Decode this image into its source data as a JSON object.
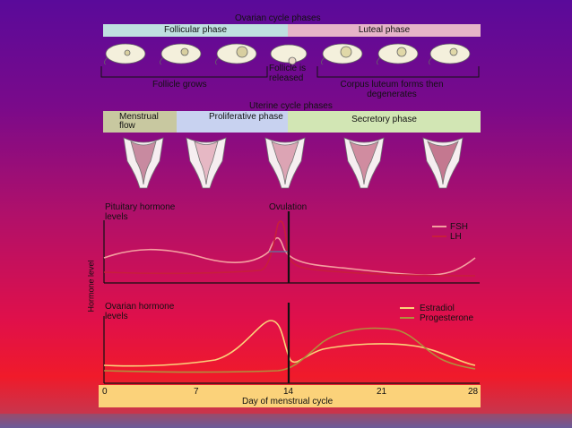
{
  "ovarian": {
    "title": "Ovarian cycle phases",
    "follicular": "Follicular phase",
    "luteal": "Luteal phase",
    "follicle_grows": "Follicle grows",
    "follicle_released": "Follicle is released",
    "corpus_luteum": "Corpus luteum forms then degenerates"
  },
  "uterine": {
    "title": "Uterine cycle phases",
    "menstrual": "Menstrual flow",
    "proliferative": "Proliferative phase",
    "secretory": "Secretory phase"
  },
  "pituitary": {
    "label": "Pituitary hormone levels",
    "ovulation": "Ovulation",
    "legend_fsh": "FSH",
    "legend_lh": "LH"
  },
  "ovarian_hormones": {
    "label": "Ovarian hormone levels",
    "legend_estradiol": "Estradiol",
    "legend_progesterone": "Progesterone"
  },
  "y_axis_label": "Hormone level",
  "x_axis": {
    "label": "Day of menstrual cycle",
    "ticks": [
      "0",
      "7",
      "14",
      "21",
      "28"
    ]
  },
  "colors": {
    "fsh": "#f4a0a0",
    "lh": "#c81e3c",
    "estradiol": "#fbd27a",
    "progesterone": "#b0903c",
    "follicular_bar": "#bfe0e0",
    "luteal_bar": "#e6b4c8",
    "menstrual_bar": "#c8c8a0",
    "proliferative_bar": "#c8d2f0",
    "secretory_bar": "#d2e6b4"
  }
}
